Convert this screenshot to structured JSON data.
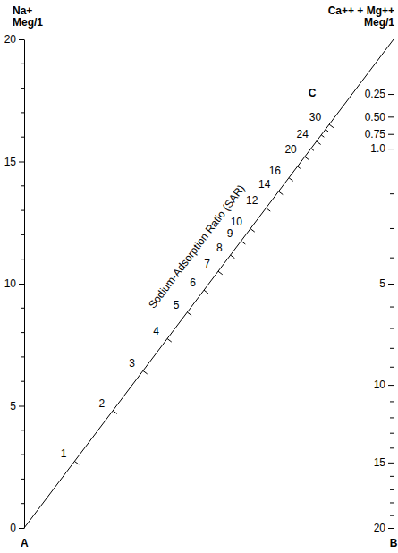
{
  "chart_data": {
    "type": "nomogram",
    "ylabel": [
      "Na+",
      "Meg/1"
    ],
    "y2label": [
      "Ca++ + Mg++",
      "Meg/1"
    ],
    "sar_label": "Sodium-Adsorption Ratio (SAR)",
    "annotations": [
      "A",
      "B",
      "C"
    ],
    "ylim": [
      0,
      20
    ],
    "yticks": [
      0,
      5,
      10,
      15,
      20
    ],
    "yminor_ticks": [
      1,
      2,
      3,
      4,
      6,
      7,
      8,
      9,
      11,
      12,
      13,
      14,
      16,
      17,
      18,
      19
    ],
    "y2lim": [
      0,
      20
    ],
    "y2ticks": [
      {
        "value": 0.25,
        "label": "0.25"
      },
      {
        "value": 0.5,
        "label": "0.50"
      },
      {
        "value": 0.75,
        "label": "0.75"
      },
      {
        "value": 1,
        "label": "1.0"
      },
      5,
      10,
      15,
      20
    ],
    "y2minor_ticks": [
      2,
      3,
      4,
      6,
      7,
      8,
      9,
      11,
      12,
      13,
      14,
      16,
      17,
      18,
      19
    ],
    "sar_ticks": [
      1,
      2,
      3,
      4,
      5,
      6,
      7,
      8,
      9,
      10,
      12,
      14,
      16,
      20,
      24,
      30
    ],
    "sar_minor_ticks": [
      18,
      22,
      26,
      28
    ],
    "grid": false
  }
}
